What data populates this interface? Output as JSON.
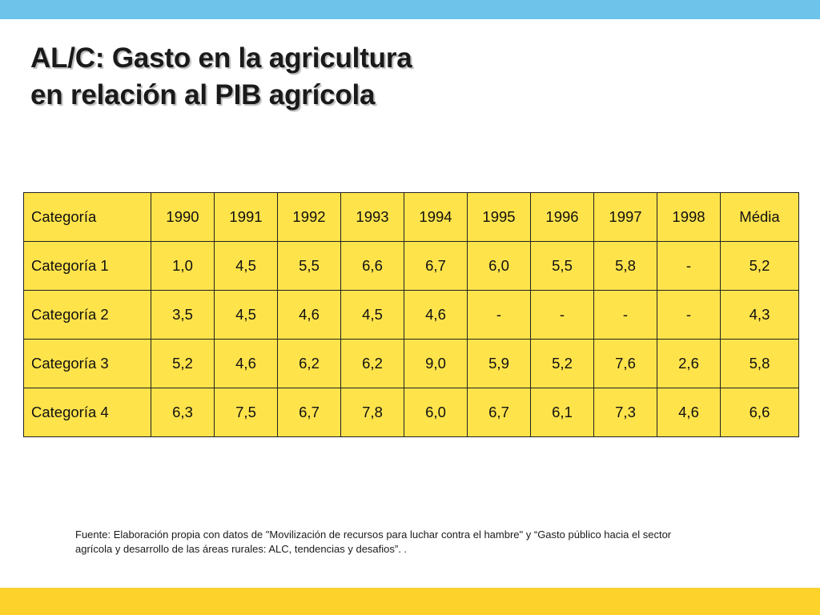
{
  "slide": {
    "title_line1": "AL/C: Gasto en la agricultura",
    "title_line2": "en relación al PIB agrícola",
    "source_line1": "Fuente: Elaboración propia con datos de \"Movilización de recursos para luchar contra el hambre\" y “Gasto público hacia el sector",
    "source_line2": "agrícola y desarrollo de las áreas rurales: ALC, tendencias y desafios”. ."
  },
  "table": {
    "headers": [
      "Categoría",
      "1990",
      "1991",
      "1992",
      "1993",
      "1994",
      "1995",
      "1996",
      "1997",
      "1998",
      "Média"
    ],
    "rows": [
      [
        "Categoría 1",
        "1,0",
        "4,5",
        "5,5",
        "6,6",
        "6,7",
        "6,0",
        "5,5",
        "5,8",
        "-",
        "5,2"
      ],
      [
        "Categoría 2",
        "3,5",
        "4,5",
        "4,6",
        "4,5",
        "4,6",
        "-",
        "-",
        "-",
        "-",
        "4,3"
      ],
      [
        "Categoría 3",
        "5,2",
        "4,6",
        "6,2",
        "6,2",
        "9,0",
        "5,9",
        "5,2",
        "7,6",
        "2,6",
        "5,8"
      ],
      [
        "Categoría 4",
        "6,3",
        "7,5",
        "6,7",
        "7,8",
        "6,0",
        "6,7",
        "6,1",
        "7,3",
        "4,6",
        "6,6"
      ]
    ]
  },
  "colors": {
    "top_bar": "#6ec3ea",
    "bottom_bar": "#fcd22b",
    "table_fill": "#ffe34b",
    "text": "#1a1a1a"
  }
}
